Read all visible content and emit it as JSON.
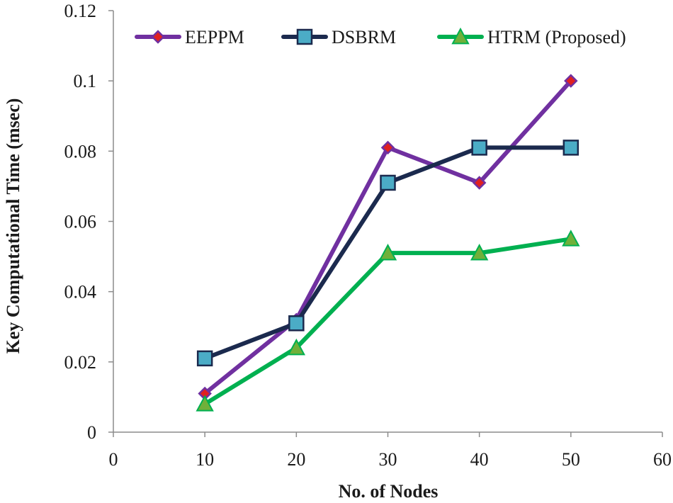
{
  "chart_data": {
    "type": "line",
    "title": "",
    "xlabel": "No. of Nodes",
    "ylabel": "Key Computational Time (msec)",
    "xlim": [
      0,
      60
    ],
    "ylim": [
      0,
      0.12
    ],
    "x_ticks": [
      0,
      10,
      20,
      30,
      40,
      50,
      60
    ],
    "x_tick_labels": [
      "0",
      "10",
      "20",
      "30",
      "40",
      "50",
      "60"
    ],
    "y_ticks": [
      0,
      0.02,
      0.04,
      0.06,
      0.08,
      0.1,
      0.12
    ],
    "y_tick_labels": [
      "0",
      "0.02",
      "0.04",
      "0.06",
      "0.08",
      "0.1",
      "0.12"
    ],
    "grid": false,
    "legend_position": "top",
    "x": [
      10,
      20,
      30,
      40,
      50
    ],
    "series": [
      {
        "name": "EEPPM",
        "values": [
          0.011,
          0.032,
          0.081,
          0.071,
          0.1
        ],
        "line_color": "#7030A0",
        "marker": "diamond",
        "marker_color": "#E02020"
      },
      {
        "name": "DSBRM",
        "values": [
          0.021,
          0.031,
          0.071,
          0.081,
          0.081
        ],
        "line_color": "#1B2A4E",
        "marker": "square",
        "marker_color": "#4BACC6"
      },
      {
        "name": "HTRM (Proposed)",
        "values": [
          0.008,
          0.024,
          0.051,
          0.051,
          0.055
        ],
        "line_color": "#00B050",
        "marker": "triangle",
        "marker_color": "#70B03A"
      }
    ]
  }
}
